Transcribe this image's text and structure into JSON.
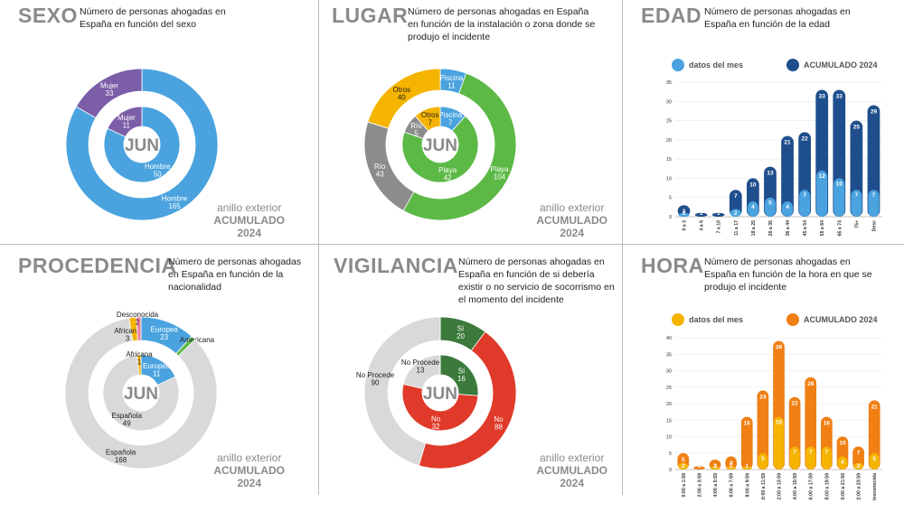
{
  "donut_common": {
    "center_label": "JUN",
    "caption_line1": "anillo exterior",
    "caption_line2": "ACUMULADO",
    "caption_line3": "2024"
  },
  "bar_legend": {
    "month": "datos del mes",
    "cumulative": "ACUMULADO 2024"
  },
  "panels": {
    "sexo": {
      "title": "SEXO",
      "desc": "Número de personas ahogadas en España en función del sexo"
    },
    "lugar": {
      "title": "LUGAR",
      "desc": "Número de personas ahogadas en España en función de la instalación o zona donde se produjo el incidente"
    },
    "edad": {
      "title": "EDAD",
      "desc": "Número de personas ahogadas en España en función de la edad"
    },
    "procedencia": {
      "title": "PROCEDENCIA",
      "desc": "Número de personas ahogadas en España en función de la nacionalidad"
    },
    "vigilancia": {
      "title": "VIGILANCIA",
      "desc": "Número de personas ahogadas en España en función de si debería existir o no servicio de socorrismo en el momento del incidente"
    },
    "hora": {
      "title": "HORA",
      "desc": "Número de personas ahogadas en España en función de la hora en que se produjo el incidente"
    }
  },
  "chart_data": [
    {
      "id": "sexo",
      "type": "pie",
      "title": "SEXO",
      "inner": [
        {
          "label": "Hombre",
          "value": 50,
          "color": "#4aa3df"
        },
        {
          "label": "Mujer",
          "value": 11,
          "color": "#7b5ea7"
        }
      ],
      "outer": [
        {
          "label": "Hombre",
          "value": 165,
          "color": "#4aa3df"
        },
        {
          "label": "Mujer",
          "value": 33,
          "color": "#7b5ea7"
        }
      ]
    },
    {
      "id": "lugar",
      "type": "pie",
      "title": "LUGAR",
      "inner": [
        {
          "label": "Piscina",
          "value": 7,
          "color": "#4aa3df"
        },
        {
          "label": "Playa",
          "value": 42,
          "color": "#5cb946"
        },
        {
          "label": "Río",
          "value": 5,
          "color": "#8c8c8c"
        },
        {
          "label": "Otros",
          "value": 7,
          "color": "#f5b400"
        }
      ],
      "outer": [
        {
          "label": "Piscina",
          "value": 11,
          "color": "#4aa3df"
        },
        {
          "label": "Playa",
          "value": 104,
          "color": "#5cb946"
        },
        {
          "label": "Río",
          "value": 43,
          "color": "#8c8c8c"
        },
        {
          "label": "Otros",
          "value": 40,
          "color": "#f5b400"
        }
      ]
    },
    {
      "id": "edad",
      "type": "bar",
      "title": "EDAD",
      "ylim": [
        0,
        35
      ],
      "yticks": [
        0,
        5,
        10,
        15,
        20,
        25,
        30,
        35
      ],
      "categories": [
        "0 a 3",
        "4 a 6",
        "7 a 10",
        "11 a 17",
        "18 a 25",
        "26 a 35",
        "36 a 44",
        "45 a 54",
        "55 a 64",
        "65 a 74",
        "75+",
        "Desc"
      ],
      "series": [
        {
          "name": "ACUMULADO 2024",
          "color": "#1f4e8c",
          "values": [
            3,
            1,
            1,
            7,
            10,
            13,
            21,
            22,
            33,
            33,
            25,
            29
          ]
        },
        {
          "name": "datos del mes",
          "color": "#4aa3df",
          "values": [
            1,
            0,
            0,
            2,
            4,
            5,
            4,
            7,
            12,
            10,
            7,
            7
          ]
        }
      ]
    },
    {
      "id": "procedencia",
      "type": "pie",
      "title": "PROCEDENCIA",
      "inner": [
        {
          "label": "Europea",
          "value": 11,
          "color": "#4aa3df"
        },
        {
          "label": "Española",
          "value": 49,
          "color": "#d9d9d9"
        },
        {
          "label": "Africana",
          "value": 1,
          "color": "#f5b400"
        }
      ],
      "outer": [
        {
          "label": "Europea",
          "value": 23,
          "color": "#4aa3df"
        },
        {
          "label": "Americana",
          "value": 2,
          "color": "#5cb946"
        },
        {
          "label": "Española",
          "value": 168,
          "color": "#d9d9d9"
        },
        {
          "label": "Africana",
          "value": 3,
          "color": "#f5b400"
        },
        {
          "label": "Desconocida",
          "value": 2,
          "color": "#e8849f"
        }
      ]
    },
    {
      "id": "vigilancia",
      "type": "pie",
      "title": "VIGILANCIA",
      "inner": [
        {
          "label": "Sí",
          "value": 16,
          "color": "#3b7a3b"
        },
        {
          "label": "No",
          "value": 32,
          "color": "#e03a2a"
        },
        {
          "label": "No Procede",
          "value": 13,
          "color": "#d9d9d9"
        }
      ],
      "outer": [
        {
          "label": "Sí",
          "value": 20,
          "color": "#3b7a3b"
        },
        {
          "label": "No",
          "value": 88,
          "color": "#e03a2a"
        },
        {
          "label": "No Procede",
          "value": 90,
          "color": "#d9d9d9"
        }
      ]
    },
    {
      "id": "hora",
      "type": "bar",
      "title": "HORA",
      "ylim": [
        0,
        40
      ],
      "yticks": [
        0,
        5,
        10,
        15,
        20,
        25,
        30,
        35,
        40
      ],
      "categories": [
        "0:00 a 1:59",
        "2:00 a 3:59",
        "4:00 a 5:59",
        "6:00 a 7:59",
        "8:00 a 9:59",
        "10:00 a 11:59",
        "12:00 a 13:59",
        "14:00 a 15:59",
        "16:00 a 17:59",
        "18:00 a 19:59",
        "20:00 a 21:59",
        "22:00 a 23:59",
        "Desconocida"
      ],
      "series": [
        {
          "name": "ACUMULADO 2024",
          "color": "#f07f14",
          "values": [
            5,
            1,
            3,
            4,
            16,
            24,
            39,
            22,
            28,
            16,
            10,
            7,
            21
          ]
        },
        {
          "name": "datos del mes",
          "color": "#f5b400",
          "values": [
            2,
            0,
            1,
            1,
            1,
            5,
            16,
            7,
            7,
            7,
            4,
            2,
            5
          ]
        }
      ]
    }
  ]
}
